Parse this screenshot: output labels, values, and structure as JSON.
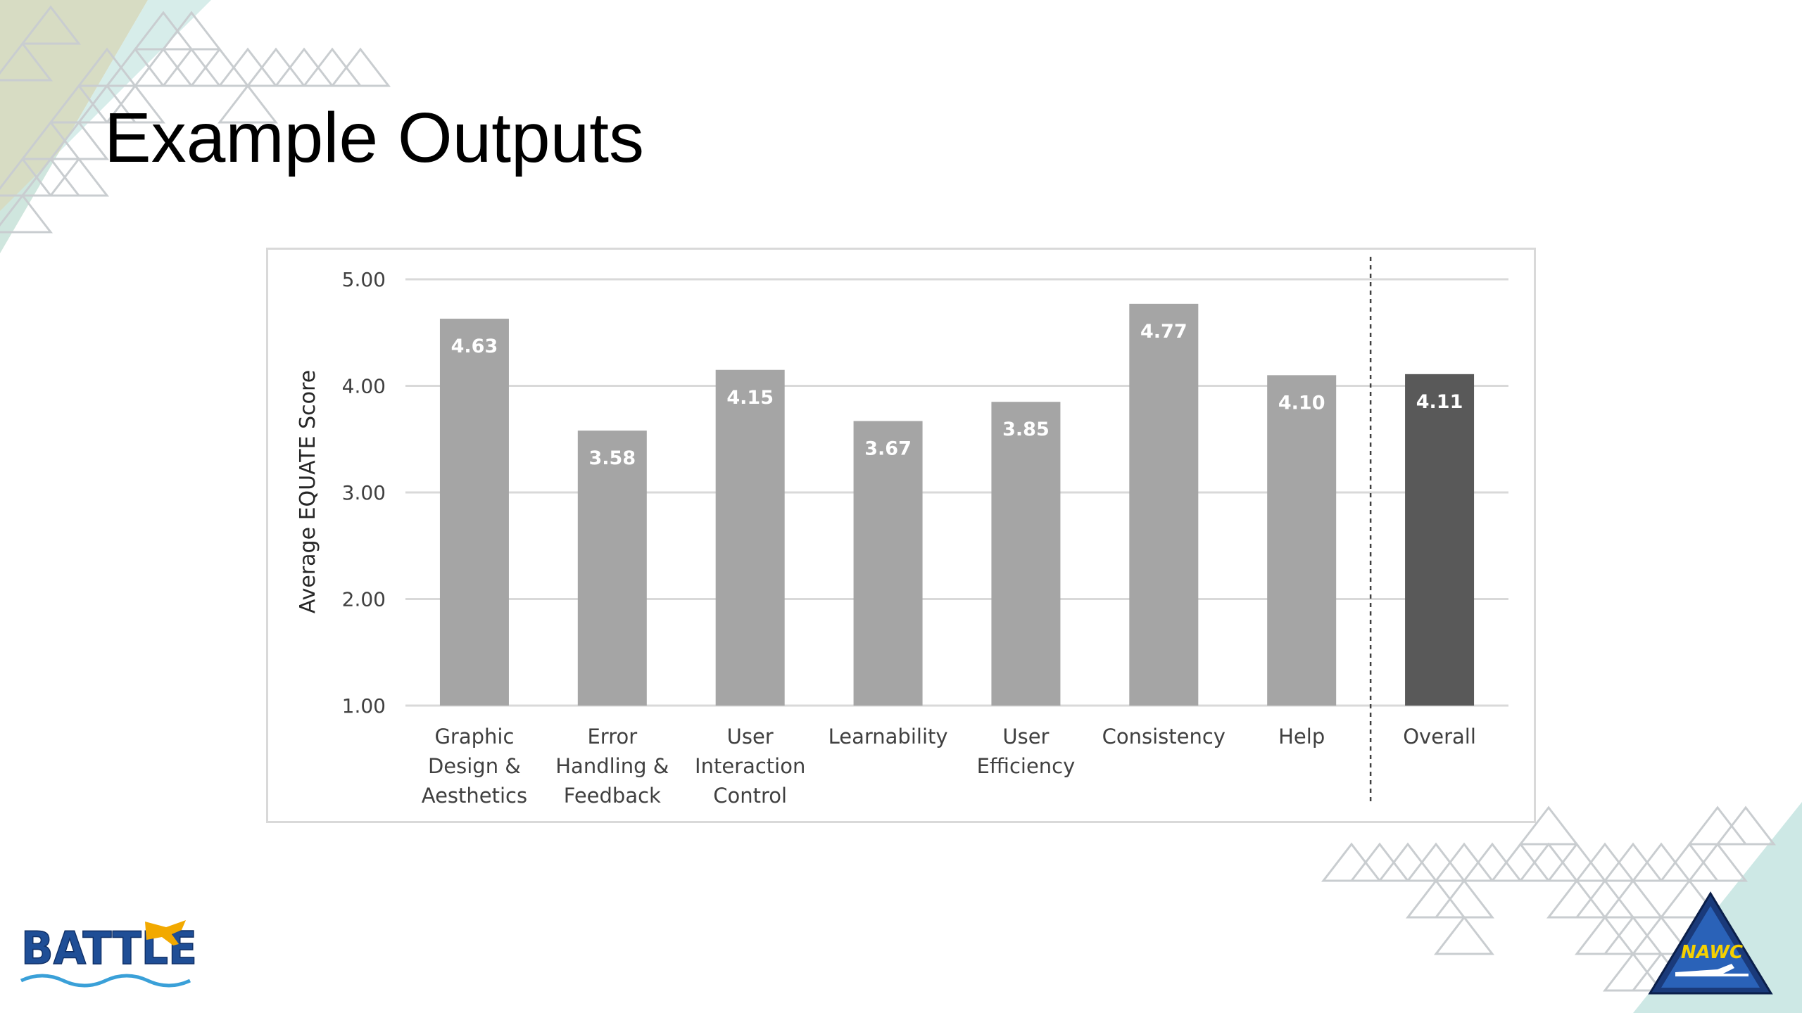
{
  "slide": {
    "title": "Example Outputs"
  },
  "logos": {
    "left": {
      "text": "BATTLE",
      "icon": "battle-logo-icon"
    },
    "right": {
      "text": "NAWC",
      "icon": "nawc-logo-icon"
    }
  },
  "colors": {
    "bar": "#a5a5a5",
    "overall_bar": "#595959",
    "gridline": "#d9d9d9",
    "separator": "#404040",
    "decor_triangles": "#c9cdd0",
    "decor_olive": "#d7dcc3",
    "decor_teal": "#cde8e5"
  },
  "chart_data": {
    "type": "bar",
    "title": "",
    "xlabel": "",
    "ylabel": "Average EQUATE Score",
    "ylim": [
      1.0,
      5.0
    ],
    "yticks": [
      "1.00",
      "2.00",
      "3.00",
      "4.00",
      "5.00"
    ],
    "grid": true,
    "legend": "none",
    "categories": [
      [
        "Graphic",
        "Design &",
        "Aesthetics"
      ],
      [
        "Error",
        "Handling &",
        "Feedback"
      ],
      [
        "User",
        "Interaction",
        "Control"
      ],
      [
        "Learnability"
      ],
      [
        "User",
        "Efficiency"
      ],
      [
        "Consistency"
      ],
      [
        "Help"
      ],
      [
        "Overall"
      ]
    ],
    "values": [
      4.63,
      3.58,
      4.15,
      3.67,
      3.85,
      4.77,
      4.1,
      4.11
    ],
    "data_labels": [
      "4.63",
      "3.58",
      "4.15",
      "3.67",
      "3.85",
      "4.77",
      "4.10",
      "4.11"
    ],
    "highlight_index": 7,
    "separator_before_index": 7
  }
}
